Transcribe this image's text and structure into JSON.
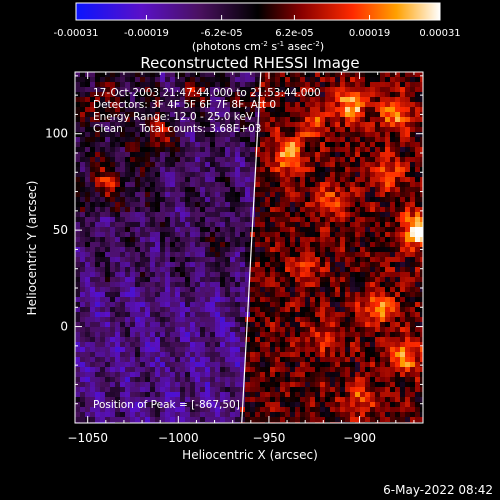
{
  "colorbar": {
    "tick_labels": [
      "-0.00031",
      "-0.00019",
      "-6.2e-05",
      "6.2e-05",
      "0.00019",
      "0.00031"
    ],
    "unit_label_main": "(photons cm",
    "unit_sup1": "-2",
    "unit_mid1": " s",
    "unit_sup2": "-1",
    "unit_mid2": " asec",
    "unit_sup3": "-2",
    "unit_end": ")"
  },
  "chart_data": {
    "type": "heatmap",
    "title": "Reconstructed RHESSI Image",
    "xlabel": "Heliocentric X (arcsec)",
    "ylabel": "Heliocentric Y (arcsec)",
    "xlim": [
      -1057,
      -865
    ],
    "ylim": [
      -50,
      132
    ],
    "x_ticks": [
      -1050,
      -1000,
      -950,
      -900
    ],
    "x_tick_labels": [
      "−1050",
      "−1000",
      "−950",
      "−900"
    ],
    "y_ticks": [
      0,
      50,
      100
    ],
    "y_tick_labels": [
      "0",
      "50",
      "100"
    ],
    "value_range": [
      -0.00031,
      0.00031
    ],
    "colormap": "red-temperature with blue-purple negatives",
    "limb_line": [
      [
        -965.0,
        -50
      ],
      [
        -954.5,
        132
      ]
    ],
    "peak": [
      -867,
      50
    ],
    "annotations": [
      "17-Oct-2003 21:47:44.000 to 21:53:44.000",
      "Detectors: 3F 4F 5F 6F 7F 8F, Att 0",
      "Energy Range: 12.0 - 25.0 keV",
      "Clean     Total counts: 3.68E+03",
      "Position of Peak = [-867,50]"
    ]
  },
  "footer": {
    "timestamp": "6-May-2022 08:42"
  }
}
